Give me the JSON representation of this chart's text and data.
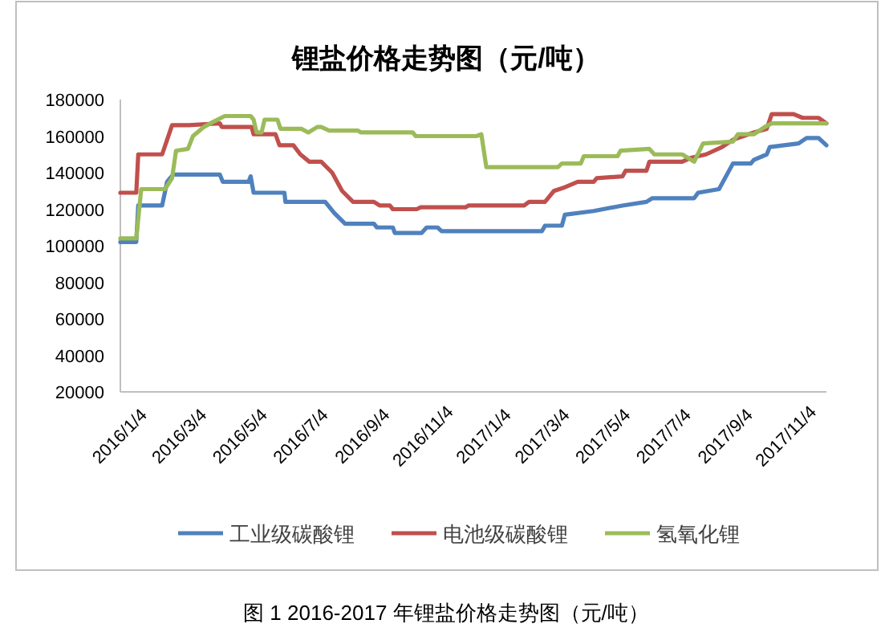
{
  "chart_data": {
    "type": "line",
    "title": "锂盐价格走势图（元/吨）",
    "legend": "bottom",
    "xlim": [
      "2016-01-04",
      "2017-12-14"
    ],
    "xticks": [
      {
        "value": "2016-01-04",
        "label": "2016/1/4"
      },
      {
        "value": "2016-03-04",
        "label": "2016/3/4"
      },
      {
        "value": "2016-05-04",
        "label": "2016/5/4"
      },
      {
        "value": "2016-07-04",
        "label": "2016/7/4"
      },
      {
        "value": "2016-09-04",
        "label": "2016/9/4"
      },
      {
        "value": "2016-11-04",
        "label": "2016/11/4"
      },
      {
        "value": "2017-01-04",
        "label": "2017/1/4"
      },
      {
        "value": "2017-03-04",
        "label": "2017/3/4"
      },
      {
        "value": "2017-05-04",
        "label": "2017/5/4"
      },
      {
        "value": "2017-07-04",
        "label": "2017/7/4"
      },
      {
        "value": "2017-09-04",
        "label": "2017/9/4"
      },
      {
        "value": "2017-11-04",
        "label": "2017/11/4"
      }
    ],
    "ylim": [
      20000,
      180000
    ],
    "yticks": [
      20000,
      40000,
      60000,
      80000,
      100000,
      120000,
      140000,
      160000,
      180000
    ],
    "annotations": [
      "图 1 2016-2017 年锂盐价格走势图（元/吨）"
    ],
    "series": [
      {
        "name": "工业级碳酸锂",
        "color": "#4f81bd",
        "x": [
          "2016-01-04",
          "2016-01-20",
          "2016-01-22",
          "2016-02-15",
          "2016-02-20",
          "2016-02-26",
          "2016-04-13",
          "2016-04-16",
          "2016-05-12",
          "2016-05-14",
          "2016-05-17",
          "2016-06-17",
          "2016-06-18",
          "2016-07-28",
          "2016-08-06",
          "2016-08-17",
          "2016-09-15",
          "2016-09-18",
          "2016-10-04",
          "2016-10-06",
          "2016-11-02",
          "2016-11-07",
          "2016-11-18",
          "2016-11-22",
          "2017-03-03",
          "2017-03-06",
          "2017-03-23",
          "2017-03-26",
          "2017-04-24",
          "2017-05-23",
          "2017-06-16",
          "2017-06-22",
          "2017-08-03",
          "2017-08-07",
          "2017-08-28",
          "2017-09-11",
          "2017-09-29",
          "2017-10-02",
          "2017-10-15",
          "2017-10-18",
          "2017-11-16",
          "2017-11-24",
          "2017-12-06",
          "2017-12-14"
        ],
        "values": [
          102000,
          102000,
          122000,
          122000,
          135000,
          139000,
          139000,
          135000,
          135000,
          138000,
          129000,
          129000,
          124000,
          124000,
          118000,
          112000,
          112000,
          110000,
          110000,
          107000,
          107000,
          110000,
          110000,
          108000,
          108000,
          111000,
          111000,
          117000,
          119000,
          122000,
          124000,
          126000,
          126000,
          129000,
          131000,
          145000,
          145000,
          147000,
          150000,
          154000,
          156000,
          159000,
          159000,
          155000
        ]
      },
      {
        "name": "电池级碳酸锂",
        "color": "#c0504d",
        "x": [
          "2016-01-04",
          "2016-01-20",
          "2016-01-22",
          "2016-02-15",
          "2016-02-20",
          "2016-02-25",
          "2016-03-13",
          "2016-04-13",
          "2016-04-15",
          "2016-05-15",
          "2016-05-17",
          "2016-06-08",
          "2016-06-12",
          "2016-06-26",
          "2016-07-03",
          "2016-07-12",
          "2016-07-24",
          "2016-08-04",
          "2016-08-14",
          "2016-08-25",
          "2016-09-15",
          "2016-09-21",
          "2016-10-01",
          "2016-10-04",
          "2016-10-28",
          "2016-11-01",
          "2016-12-16",
          "2016-12-19",
          "2017-02-13",
          "2017-02-18",
          "2017-03-06",
          "2017-03-15",
          "2017-03-26",
          "2017-04-08",
          "2017-04-24",
          "2017-04-27",
          "2017-05-23",
          "2017-05-26",
          "2017-06-16",
          "2017-06-19",
          "2017-07-22",
          "2017-07-30",
          "2017-08-15",
          "2017-08-31",
          "2017-09-11",
          "2017-10-02",
          "2017-10-15",
          "2017-10-20",
          "2017-11-11",
          "2017-11-20",
          "2017-12-06",
          "2017-12-14"
        ],
        "values": [
          129000,
          129000,
          150000,
          150000,
          158000,
          166000,
          166000,
          167000,
          165000,
          165000,
          161000,
          161000,
          155000,
          155000,
          150000,
          146000,
          146000,
          140000,
          130000,
          124000,
          124000,
          122000,
          122000,
          120000,
          120000,
          121000,
          121000,
          122000,
          122000,
          124000,
          124000,
          130000,
          132000,
          135000,
          135000,
          137000,
          138000,
          141000,
          141000,
          146000,
          146000,
          148000,
          150000,
          154000,
          158000,
          162000,
          164000,
          172000,
          172000,
          170000,
          170000,
          167000
        ]
      },
      {
        "name": "氢氧化锂",
        "color": "#9bbb59",
        "x": [
          "2016-01-04",
          "2016-01-20",
          "2016-01-25",
          "2016-02-18",
          "2016-02-25",
          "2016-02-29",
          "2016-03-12",
          "2016-03-17",
          "2016-03-28",
          "2016-04-07",
          "2016-04-18",
          "2016-05-14",
          "2016-05-17",
          "2016-05-20",
          "2016-05-25",
          "2016-05-28",
          "2016-06-10",
          "2016-06-13",
          "2016-07-04",
          "2016-07-11",
          "2016-07-20",
          "2016-07-24",
          "2016-08-01",
          "2016-08-30",
          "2016-09-02",
          "2016-10-24",
          "2016-10-27",
          "2016-12-27",
          "2017-01-01",
          "2017-01-06",
          "2017-03-19",
          "2017-03-23",
          "2017-04-11",
          "2017-04-14",
          "2017-05-18",
          "2017-05-21",
          "2017-06-19",
          "2017-06-24",
          "2017-07-22",
          "2017-08-03",
          "2017-08-12",
          "2017-09-11",
          "2017-09-16",
          "2017-10-02",
          "2017-10-13",
          "2017-10-20",
          "2017-12-14"
        ],
        "values": [
          104000,
          104000,
          131000,
          131000,
          137000,
          152000,
          153000,
          160000,
          165000,
          168000,
          171000,
          171000,
          169000,
          162000,
          162000,
          169000,
          169000,
          164000,
          164000,
          162000,
          165000,
          165000,
          163000,
          163000,
          162000,
          162000,
          160000,
          160000,
          161000,
          143000,
          143000,
          145000,
          145000,
          149000,
          149000,
          152000,
          153000,
          150000,
          150000,
          146000,
          156000,
          157000,
          161000,
          161000,
          165000,
          167000,
          167000
        ]
      }
    ]
  }
}
